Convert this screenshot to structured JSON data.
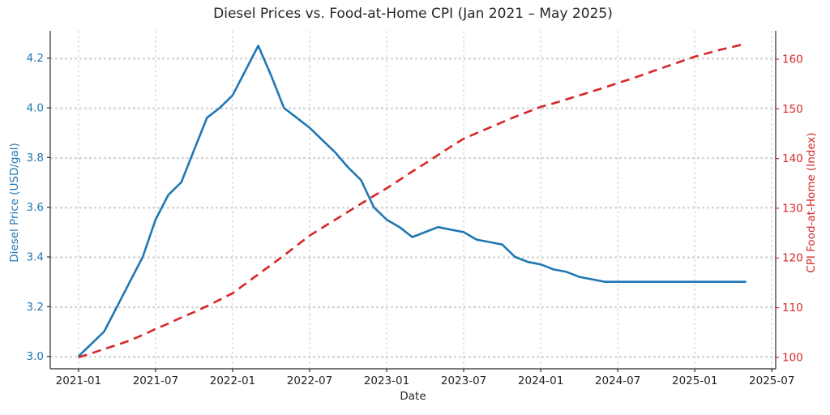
{
  "chart_data": {
    "type": "line",
    "title": "Diesel Prices vs. Food-at-Home CPI (Jan 2021 – May 2025)",
    "xlabel": "Date",
    "grid": true,
    "legend": "none",
    "x_start": "2021-01",
    "x_step": "1 month",
    "x_end": "2025-05",
    "x_tick_labels": [
      "2021-01",
      "2021-07",
      "2022-01",
      "2022-07",
      "2023-01",
      "2023-07",
      "2024-01",
      "2024-07",
      "2025-01",
      "2025-07"
    ],
    "x_tick_positions_months": [
      0,
      6,
      12,
      18,
      24,
      30,
      36,
      42,
      48,
      54
    ],
    "x_axis_range_months": [
      -2.2,
      54.3
    ],
    "axes": {
      "left": {
        "label": "Diesel Price (USD/gal)",
        "color": "#1f77b4",
        "tick_values": [
          3.0,
          3.2,
          3.4,
          3.6,
          3.8,
          4.0,
          4.2
        ],
        "tick_labels": [
          "3.0",
          "3.2",
          "3.4",
          "3.6",
          "3.8",
          "4.0",
          "4.2"
        ],
        "range": [
          2.95,
          4.31
        ]
      },
      "right": {
        "label": "CPI Food-at-Home (Index)",
        "color": "#d62728",
        "tick_values": [
          100,
          110,
          120,
          130,
          140,
          150,
          160
        ],
        "tick_labels": [
          "100",
          "110",
          "120",
          "130",
          "140",
          "150",
          "160"
        ],
        "range": [
          97.7,
          165.7
        ]
      }
    },
    "series": [
      {
        "name": "Diesel Price (USD/gal)",
        "axis": "left",
        "color": "#1f77b4",
        "line_style": "solid",
        "start": "2021-01",
        "values": [
          3.0,
          3.05,
          3.1,
          3.2,
          3.3,
          3.4,
          3.55,
          3.65,
          3.7,
          3.83,
          3.96,
          4.0,
          4.05,
          4.15,
          4.25,
          4.13,
          4.0,
          3.96,
          3.92,
          3.87,
          3.82,
          3.76,
          3.71,
          3.6,
          3.55,
          3.52,
          3.48,
          3.5,
          3.52,
          3.51,
          3.5,
          3.47,
          3.46,
          3.45,
          3.4,
          3.38,
          3.37,
          3.35,
          3.34,
          3.32,
          3.31,
          3.3,
          3.3,
          3.3,
          3.3,
          3.3,
          3.3,
          3.3,
          3.3,
          3.3,
          3.3,
          3.3,
          3.3
        ]
      },
      {
        "name": "CPI Food-at-Home (Index)",
        "axis": "right",
        "color": "#d62728",
        "line_style": "dashed",
        "start": "2021-01",
        "values": [
          100.0,
          100.8,
          101.7,
          102.5,
          103.4,
          104.5,
          105.7,
          106.8,
          108.0,
          109.1,
          110.3,
          111.6,
          112.9,
          114.8,
          116.7,
          118.6,
          120.5,
          122.5,
          124.5,
          126.1,
          127.7,
          129.3,
          130.9,
          132.5,
          134.0,
          135.7,
          137.4,
          139.0,
          140.7,
          142.4,
          144.0,
          145.1,
          146.2,
          147.3,
          148.4,
          149.4,
          150.4,
          151.1,
          151.9,
          152.7,
          153.5,
          154.3,
          155.2,
          156.0,
          156.9,
          157.8,
          158.7,
          159.6,
          160.5,
          161.2,
          161.9,
          162.5,
          163.1
        ]
      }
    ],
    "style": {
      "grid_color": "#cdcdcd",
      "spine_color": "#2b2b2b",
      "tick_text_color": "#262626",
      "background": "#ffffff"
    }
  }
}
